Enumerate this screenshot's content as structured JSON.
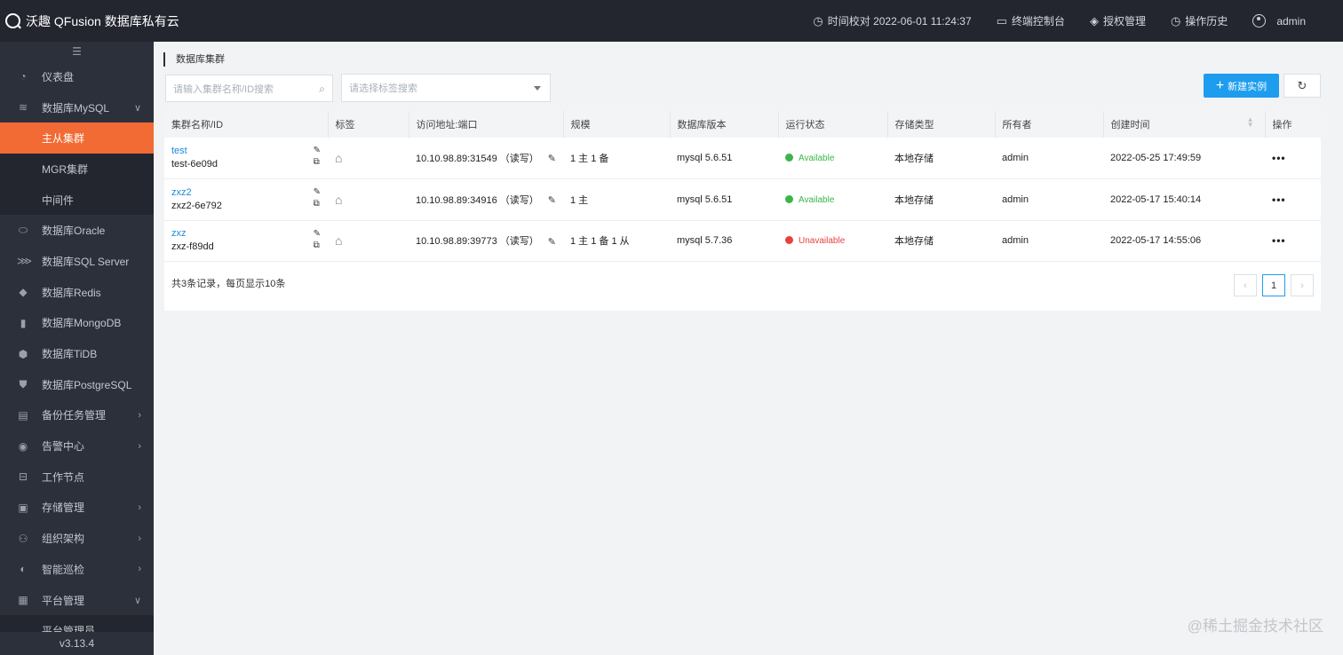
{
  "header": {
    "brand": "沃趣 QFusion 数据库私有云",
    "time_sync": "时间校对 2022-06-01 11:24:37",
    "console": "终端控制台",
    "license": "授权管理",
    "history": "操作历史",
    "user": "admin"
  },
  "sidebar": {
    "collapse_glyph": "☰",
    "items": [
      {
        "label": "仪表盘",
        "icon": "dashboard-icon"
      },
      {
        "label": "数据库MySQL",
        "icon": "mysql-icon"
      },
      {
        "label": "主从集群"
      },
      {
        "label": "MGR集群"
      },
      {
        "label": "中间件"
      },
      {
        "label": "数据库Oracle",
        "icon": "oracle-icon"
      },
      {
        "label": "数据库SQL Server",
        "icon": "sqlserver-icon"
      },
      {
        "label": "数据库Redis",
        "icon": "redis-icon"
      },
      {
        "label": "数据库MongoDB",
        "icon": "mongodb-icon"
      },
      {
        "label": "数据库TiDB",
        "icon": "tidb-icon"
      },
      {
        "label": "数据库PostgreSQL",
        "icon": "postgresql-icon"
      },
      {
        "label": "备份任务管理",
        "icon": "backup-icon"
      },
      {
        "label": "告警中心",
        "icon": "alarm-icon"
      },
      {
        "label": "工作节点",
        "icon": "node-icon"
      },
      {
        "label": "存储管理",
        "icon": "storage-icon"
      },
      {
        "label": "组织架构",
        "icon": "org-icon"
      },
      {
        "label": "智能巡检",
        "icon": "inspect-icon"
      },
      {
        "label": "平台管理",
        "icon": "platform-icon"
      },
      {
        "label": "平台管理员"
      }
    ],
    "version": "v3.13.4"
  },
  "breadcrumb": "数据库集群",
  "search": {
    "placeholder": "请输入集群名称/ID搜索"
  },
  "tag_filter": {
    "placeholder": "请选择标签搜索"
  },
  "new_button": "新建实例",
  "table": {
    "headers": [
      "集群名称/ID",
      "标签",
      "访问地址:端口",
      "规模",
      "数据库版本",
      "运行状态",
      "存储类型",
      "所有者",
      "创建时间",
      "操作"
    ],
    "rows": [
      {
        "name": "test",
        "id": "test-6e09d",
        "addr": "10.10.98.89:31549 （读写）",
        "scale": "1 主 1 备",
        "version": "mysql 5.6.51",
        "status": "Available",
        "storage": "本地存储",
        "owner": "admin",
        "created": "2022-05-25 17:49:59",
        "op": "•••"
      },
      {
        "name": "zxz2",
        "id": "zxz2-6e792",
        "addr": "10.10.98.89:34916 （读写）",
        "scale": "1 主",
        "version": "mysql 5.6.51",
        "status": "Available",
        "storage": "本地存储",
        "owner": "admin",
        "created": "2022-05-17 15:40:14",
        "op": "•••"
      },
      {
        "name": "zxz",
        "id": "zxz-f89dd",
        "addr": "10.10.98.89:39773 （读写）",
        "scale": "1 主 1 备 1 从",
        "version": "mysql 5.7.36",
        "status": "Unavailable",
        "storage": "本地存储",
        "owner": "admin",
        "created": "2022-05-17 14:55:06",
        "op": "•••"
      }
    ],
    "summary": "共3条记录，每页显示10条"
  },
  "pagination": {
    "prev": "‹",
    "current": "1",
    "next": "›"
  },
  "watermark": "@稀土掘金技术社区",
  "colors": {
    "accent": "#f26b34",
    "primary": "#1e9dee",
    "available": "#3bb54a",
    "unavailable": "#e8413c"
  }
}
